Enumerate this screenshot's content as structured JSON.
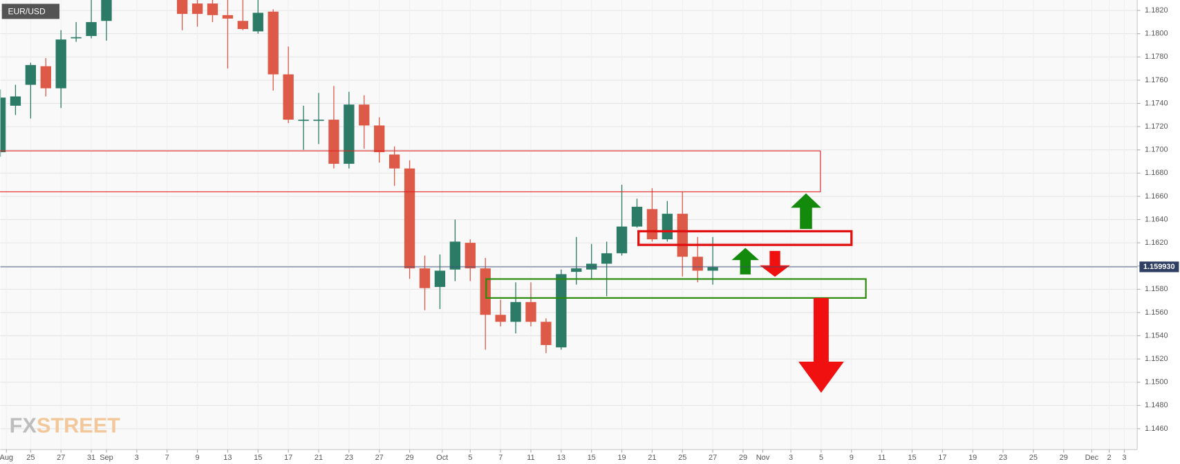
{
  "chart_data": {
    "type": "candlestick",
    "symbol": "EUR/USD",
    "watermark": "FXSTREET",
    "up_color": "#2b7b67",
    "down_color": "#dd5a48",
    "grid": true,
    "xlim": [
      0,
      75
    ],
    "ylim": [
      1.1442,
      1.1829
    ],
    "xticks": [
      {
        "value": 0.4,
        "label": "Aug"
      },
      {
        "value": 2,
        "label": "25"
      },
      {
        "value": 4,
        "label": "27"
      },
      {
        "value": 6,
        "label": "31"
      },
      {
        "value": 7,
        "label": "Sep"
      },
      {
        "value": 9,
        "label": "3"
      },
      {
        "value": 11,
        "label": "7"
      },
      {
        "value": 13,
        "label": "9"
      },
      {
        "value": 15,
        "label": "13"
      },
      {
        "value": 17,
        "label": "15"
      },
      {
        "value": 19,
        "label": "17"
      },
      {
        "value": 21,
        "label": "21"
      },
      {
        "value": 23,
        "label": "23"
      },
      {
        "value": 25,
        "label": "27"
      },
      {
        "value": 27,
        "label": "29"
      },
      {
        "value": 29.15,
        "label": "Oct"
      },
      {
        "value": 31,
        "label": "5"
      },
      {
        "value": 33,
        "label": "7"
      },
      {
        "value": 35,
        "label": "11"
      },
      {
        "value": 37,
        "label": "13"
      },
      {
        "value": 39,
        "label": "15"
      },
      {
        "value": 41,
        "label": "19"
      },
      {
        "value": 43,
        "label": "21"
      },
      {
        "value": 45,
        "label": "25"
      },
      {
        "value": 47,
        "label": "27"
      },
      {
        "value": 49,
        "label": "29"
      },
      {
        "value": 50.3,
        "label": "Nov"
      },
      {
        "value": 52.15,
        "label": "3"
      },
      {
        "value": 54.15,
        "label": "5"
      },
      {
        "value": 56.15,
        "label": "9"
      },
      {
        "value": 58.15,
        "label": "11"
      },
      {
        "value": 60.15,
        "label": "15"
      },
      {
        "value": 62.15,
        "label": "17"
      },
      {
        "value": 64.15,
        "label": "19"
      },
      {
        "value": 66.15,
        "label": "23"
      },
      {
        "value": 68.15,
        "label": "25"
      },
      {
        "value": 70.15,
        "label": "29"
      },
      {
        "value": 72,
        "label": "Dec"
      },
      {
        "value": 73.15,
        "label": "2"
      },
      {
        "value": 74.15,
        "label": "3"
      }
    ],
    "yticks": [
      {
        "value": 1.146,
        "label": "1.1460"
      },
      {
        "value": 1.148,
        "label": "1.1480"
      },
      {
        "value": 1.15,
        "label": "1.1500"
      },
      {
        "value": 1.152,
        "label": "1.1520"
      },
      {
        "value": 1.154,
        "label": "1.1540"
      },
      {
        "value": 1.156,
        "label": "1.1560"
      },
      {
        "value": 1.158,
        "label": "1.1580"
      },
      {
        "value": 1.16,
        "label": "1.1600"
      },
      {
        "value": 1.162,
        "label": "1.1620"
      },
      {
        "value": 1.164,
        "label": "1.1640"
      },
      {
        "value": 1.166,
        "label": "1.1660"
      },
      {
        "value": 1.168,
        "label": "1.1680"
      },
      {
        "value": 1.17,
        "label": "1.1700"
      },
      {
        "value": 1.172,
        "label": "1.1720"
      },
      {
        "value": 1.174,
        "label": "1.1740"
      },
      {
        "value": 1.176,
        "label": "1.1760"
      },
      {
        "value": 1.178,
        "label": "1.1780"
      },
      {
        "value": 1.18,
        "label": "1.1800"
      },
      {
        "value": 1.182,
        "label": "1.1820"
      }
    ],
    "last_price": {
      "value": 1.15993,
      "label": "1.159930"
    },
    "x": [
      0,
      1,
      2,
      3,
      4,
      5,
      6,
      7,
      12,
      13,
      14,
      15,
      16,
      17,
      18,
      19,
      20,
      21,
      22,
      23,
      24,
      25,
      26,
      27,
      28,
      29,
      30,
      31,
      32,
      33,
      34,
      35,
      36,
      37,
      38,
      39,
      40,
      41,
      42,
      43,
      44,
      45,
      46,
      47
    ],
    "open": [
      1.1698,
      1.1738,
      1.1756,
      1.1772,
      1.1753,
      1.1796,
      1.1798,
      1.1811,
      1.1835,
      1.1826,
      1.1826,
      1.1816,
      1.1811,
      1.1802,
      1.1819,
      1.1765,
      1.1725,
      1.1726,
      1.1726,
      1.1688,
      1.1739,
      1.1721,
      1.1696,
      1.1684,
      1.1598,
      1.1582,
      1.1597,
      1.162,
      1.1598,
      1.1558,
      1.1552,
      1.1569,
      1.1552,
      1.153,
      1.1595,
      1.1597,
      1.1602,
      1.1611,
      1.1634,
      1.1649,
      1.1623,
      1.1645,
      1.1608,
      1.1596
    ],
    "high": [
      1.1752,
      1.1756,
      1.1775,
      1.1779,
      1.1803,
      1.181,
      1.1829,
      1.1845,
      1.184,
      1.183,
      1.1829,
      1.183,
      1.1835,
      1.1833,
      1.1821,
      1.1789,
      1.1738,
      1.1749,
      1.1755,
      1.175,
      1.1747,
      1.1728,
      1.1703,
      1.1691,
      1.1609,
      1.161,
      1.164,
      1.1623,
      1.1607,
      1.1571,
      1.1586,
      1.1586,
      1.1555,
      1.1597,
      1.1625,
      1.1619,
      1.1621,
      1.167,
      1.1658,
      1.1667,
      1.1656,
      1.1664,
      1.1625,
      1.1625
    ],
    "low": [
      1.1694,
      1.173,
      1.1727,
      1.1746,
      1.1736,
      1.1793,
      1.1796,
      1.1794,
      1.1803,
      1.1806,
      1.181,
      1.177,
      1.1803,
      1.18,
      1.1751,
      1.1723,
      1.17,
      1.1705,
      1.1684,
      1.1684,
      1.1701,
      1.1689,
      1.1669,
      1.1589,
      1.1562,
      1.1563,
      1.1587,
      1.1587,
      1.1528,
      1.1548,
      1.1542,
      1.1548,
      1.1525,
      1.1528,
      1.1584,
      1.1589,
      1.1574,
      1.1609,
      1.1633,
      1.1621,
      1.1621,
      1.1591,
      1.1586,
      1.1584
    ],
    "close": [
      1.1745,
      1.1746,
      1.1773,
      1.1753,
      1.1795,
      1.1797,
      1.181,
      1.1835,
      1.1817,
      1.1817,
      1.1816,
      1.1813,
      1.1804,
      1.1818,
      1.1765,
      1.1726,
      1.1726,
      1.1726,
      1.1688,
      1.1739,
      1.1721,
      1.1698,
      1.1684,
      1.1598,
      1.1581,
      1.1596,
      1.1621,
      1.1598,
      1.1558,
      1.1552,
      1.1569,
      1.1552,
      1.1532,
      1.1593,
      1.1598,
      1.1602,
      1.1611,
      1.1634,
      1.1651,
      1.1623,
      1.1645,
      1.1608,
      1.1596,
      1.1599
    ]
  }
}
